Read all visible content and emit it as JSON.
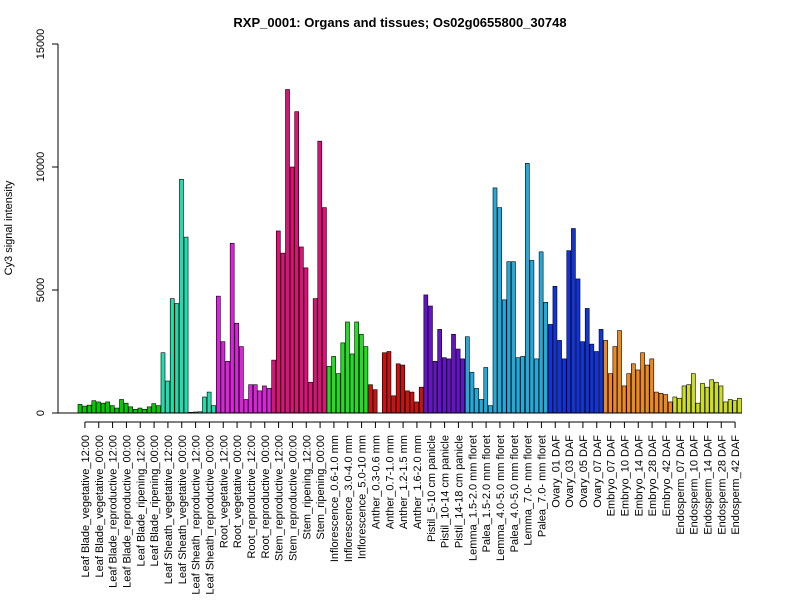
{
  "chart_data": {
    "type": "bar",
    "title": "RXP_0001: Organs and tissues; Os02g0655800_30748",
    "xlabel": "",
    "ylabel": "Cy3 signal intensity",
    "ylim": [
      0,
      15000
    ],
    "yticks": [
      0,
      5000,
      10000,
      15000
    ],
    "grid": false,
    "legend": "none",
    "groups": [
      {
        "label": "Leaf Blade_vegetative_12:00",
        "color": "#00cc00",
        "values": [
          350,
          280,
          320
        ]
      },
      {
        "label": "Leaf Blade_vegetative_00:00",
        "color": "#00cc00",
        "values": [
          500,
          450,
          400
        ]
      },
      {
        "label": "Leaf Blade_reproductive_12:00",
        "color": "#00cc00",
        "values": [
          450,
          300,
          200
        ]
      },
      {
        "label": "Leaf Blade_reproductive_00:00",
        "color": "#00cc00",
        "values": [
          550,
          400,
          250
        ]
      },
      {
        "label": "Leaf Blade_ripening_12:00",
        "color": "#00cc00",
        "values": [
          150,
          200,
          150
        ]
      },
      {
        "label": "Leaf Blade_ripening_00:00",
        "color": "#00cc00",
        "values": [
          250,
          380,
          300
        ]
      },
      {
        "label": "Leaf Sheath_vegetative_12:00",
        "color": "#22ddaa",
        "values": [
          2450,
          1300,
          4650
        ]
      },
      {
        "label": "Leaf Sheath_vegetative_00:00",
        "color": "#22ddaa",
        "values": [
          4450,
          9500,
          7150
        ]
      },
      {
        "label": "Leaf Sheath_reproductive_12:00",
        "color": "#22ddaa",
        "values": [
          30,
          40,
          50
        ]
      },
      {
        "label": "Leaf Sheath_reproductive_00:00",
        "color": "#22ddaa",
        "values": [
          650,
          850,
          300
        ]
      },
      {
        "label": "Root_vegetative_12:00",
        "color": "#dd22dd",
        "values": [
          4750,
          2900,
          2100
        ]
      },
      {
        "label": "Root_vegetative_00:00",
        "color": "#dd22dd",
        "values": [
          6900,
          3650,
          2700
        ]
      },
      {
        "label": "Root_reproductive_12:00",
        "color": "#dd22dd",
        "values": [
          550,
          1150,
          1150
        ]
      },
      {
        "label": "Root_reproductive_00:00",
        "color": "#dd22dd",
        "values": [
          900,
          1100,
          1000
        ]
      },
      {
        "label": "Stem_reproductive_12:00",
        "color": "#dd1177",
        "values": [
          2150,
          7400,
          6500
        ]
      },
      {
        "label": "Stem_reproductive_00:00",
        "color": "#dd1177",
        "values": [
          13150,
          10000,
          12250
        ]
      },
      {
        "label": "Stem_ripening_12:00",
        "color": "#dd1177",
        "values": [
          6750,
          5900,
          1250
        ]
      },
      {
        "label": "Stem_ripening_00:00",
        "color": "#dd1177",
        "values": [
          4650,
          11050,
          8350
        ]
      },
      {
        "label": "Inflorescence_0.6-1.0 mm",
        "color": "#22dd22",
        "values": [
          1900,
          2300,
          1600
        ]
      },
      {
        "label": "Inflorescence_3.0-4.0 mm",
        "color": "#22dd22",
        "values": [
          2850,
          3700,
          2400
        ]
      },
      {
        "label": "Inflorescence_5.0-10 mm",
        "color": "#22dd22",
        "values": [
          3700,
          3200,
          2700
        ]
      },
      {
        "label": "Anther_0.3-0.6 mm",
        "color": "#cc1111",
        "values": [
          1150,
          950,
          0
        ]
      },
      {
        "label": "Anther_0.7-1.0 mm",
        "color": "#cc1111",
        "values": [
          2450,
          2500,
          700
        ]
      },
      {
        "label": "Anther_1.2-1.5 mm",
        "color": "#cc1111",
        "values": [
          2000,
          1950,
          900
        ]
      },
      {
        "label": "Anther_1.6-2.0 mm",
        "color": "#cc1111",
        "values": [
          850,
          450,
          1050
        ]
      },
      {
        "label": "Pistil_5-10 cm panicle",
        "color": "#6611cc",
        "values": [
          4800,
          4350,
          2100
        ]
      },
      {
        "label": "Pistil_10-14 cm panicle",
        "color": "#6611cc",
        "values": [
          3400,
          2250,
          2200
        ]
      },
      {
        "label": "Pistil_14-18 cm panicle",
        "color": "#6611cc",
        "values": [
          3200,
          2600,
          2200
        ]
      },
      {
        "label": "Lemma_1.5-2.0 mm floret",
        "color": "#22aadd",
        "values": [
          3100,
          1650,
          1000
        ]
      },
      {
        "label": "Palea_1.5-2.0 mm floret",
        "color": "#22aadd",
        "values": [
          550,
          1850,
          300
        ]
      },
      {
        "label": "Lemma_4.0-5.0 mm floret",
        "color": "#22aadd",
        "values": [
          9150,
          8350,
          4600
        ]
      },
      {
        "label": "Palea_4.0-5.0 mm floret",
        "color": "#22aadd",
        "values": [
          6150,
          6150,
          2250
        ]
      },
      {
        "label": "Lemma_7.0- mm floret",
        "color": "#22aadd",
        "values": [
          2300,
          10150,
          6200
        ]
      },
      {
        "label": "Palea_7.0- mm floret",
        "color": "#22aadd",
        "values": [
          2200,
          6550,
          4500
        ]
      },
      {
        "label": "Ovary_01 DAF",
        "color": "#1133dd",
        "values": [
          3600,
          5150,
          2950
        ]
      },
      {
        "label": "Ovary_03 DAF",
        "color": "#1133dd",
        "values": [
          2200,
          6600,
          7500
        ]
      },
      {
        "label": "Ovary_05 DAF",
        "color": "#1133dd",
        "values": [
          5450,
          2900,
          4250
        ]
      },
      {
        "label": "Ovary_07 DAF",
        "color": "#1133dd",
        "values": [
          2800,
          2500,
          3400
        ]
      },
      {
        "label": "Embryo_07 DAF",
        "color": "#ee8822",
        "values": [
          2950,
          1600,
          2700
        ]
      },
      {
        "label": "Embryo_10 DAF",
        "color": "#ee8822",
        "values": [
          3350,
          1100,
          1600
        ]
      },
      {
        "label": "Embryo_14 DAF",
        "color": "#ee8822",
        "values": [
          2000,
          1750,
          2450
        ]
      },
      {
        "label": "Embryo_28 DAF",
        "color": "#ee8822",
        "values": [
          1950,
          2200,
          850
        ]
      },
      {
        "label": "Embryo_42 DAF",
        "color": "#ee8822",
        "values": [
          800,
          750,
          450
        ]
      },
      {
        "label": "Endosperm_07 DAF",
        "color": "#ccdd22",
        "values": [
          650,
          600,
          1100
        ]
      },
      {
        "label": "Endosperm_10 DAF",
        "color": "#ccdd22",
        "values": [
          1150,
          1600,
          400
        ]
      },
      {
        "label": "Endosperm_14 DAF",
        "color": "#ccdd22",
        "values": [
          1200,
          1050,
          1350
        ]
      },
      {
        "label": "Endosperm_28 DAF",
        "color": "#ccdd22",
        "values": [
          1250,
          1100,
          450
        ]
      },
      {
        "label": "Endosperm_42 DAF",
        "color": "#ccdd22",
        "values": [
          550,
          500,
          600
        ]
      }
    ],
    "visible_xtick_indices": [
      0,
      1,
      2,
      3,
      4,
      5,
      6,
      7,
      8,
      9,
      10,
      11,
      12,
      13,
      14,
      15,
      16,
      17,
      18,
      19,
      20,
      21,
      22,
      23,
      24,
      25,
      26,
      27,
      28,
      29,
      30,
      31,
      32,
      33,
      34,
      35,
      36,
      37,
      38,
      39,
      40,
      41,
      42,
      43,
      44,
      45,
      46,
      47
    ]
  }
}
